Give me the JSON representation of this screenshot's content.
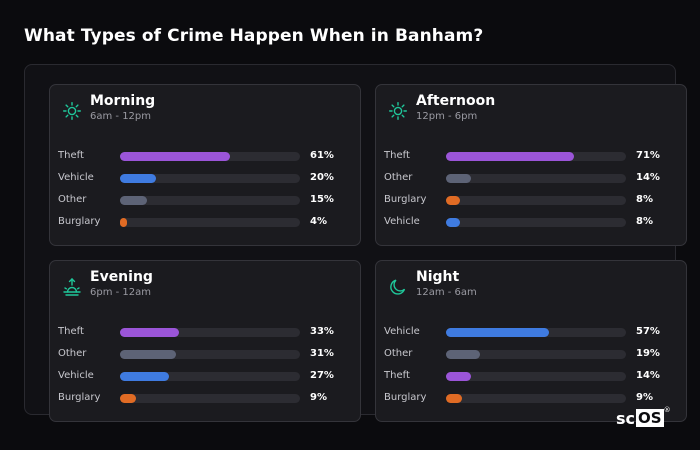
{
  "title": "What Types of Crime Happen When in Banham?",
  "brand": {
    "part1": "sc",
    "part2": "OS",
    "reg": "®"
  },
  "colors": {
    "theft": "#9b55d8",
    "vehicle": "#3f7be0",
    "other": "#5d6376",
    "burglary": "#e06b24",
    "icon_accent": "#1fc79a"
  },
  "chart_data": [
    {
      "type": "bar",
      "title": "Morning",
      "subtitle": "6am - 12pm",
      "icon": "sun-icon",
      "categories": [
        "Theft",
        "Vehicle",
        "Other",
        "Burglary"
      ],
      "values": [
        61,
        20,
        15,
        4
      ],
      "labels": [
        "61%",
        "20%",
        "15%",
        "4%"
      ],
      "xlim": [
        0,
        100
      ]
    },
    {
      "type": "bar",
      "title": "Afternoon",
      "subtitle": "12pm - 6pm",
      "icon": "sun-icon",
      "categories": [
        "Theft",
        "Other",
        "Burglary",
        "Vehicle"
      ],
      "values": [
        71,
        14,
        8,
        8
      ],
      "labels": [
        "71%",
        "14%",
        "8%",
        "8%"
      ],
      "xlim": [
        0,
        100
      ]
    },
    {
      "type": "bar",
      "title": "Evening",
      "subtitle": "6pm - 12am",
      "icon": "sunset-icon",
      "categories": [
        "Theft",
        "Other",
        "Vehicle",
        "Burglary"
      ],
      "values": [
        33,
        31,
        27,
        9
      ],
      "labels": [
        "33%",
        "31%",
        "27%",
        "9%"
      ],
      "xlim": [
        0,
        100
      ]
    },
    {
      "type": "bar",
      "title": "Night",
      "subtitle": "12am - 6am",
      "icon": "moon-icon",
      "categories": [
        "Vehicle",
        "Other",
        "Theft",
        "Burglary"
      ],
      "values": [
        57,
        19,
        14,
        9
      ],
      "labels": [
        "57%",
        "19%",
        "14%",
        "9%"
      ],
      "xlim": [
        0,
        100
      ]
    }
  ]
}
